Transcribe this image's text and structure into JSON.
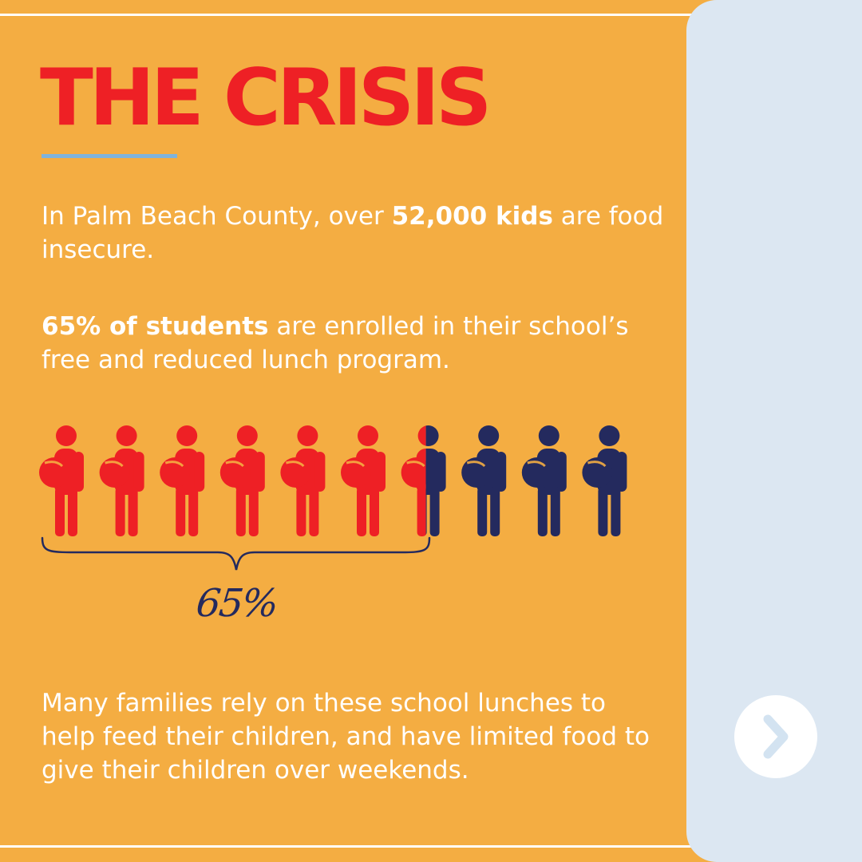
{
  "title": "THE CRISIS",
  "paragraph1": {
    "pre": "In Palm Beach County, over ",
    "bold": "52,000 kids",
    "post": " are food insecure."
  },
  "paragraph2": {
    "bold": "65% of students",
    "post": " are enrolled in their school’s free and reduced lunch program."
  },
  "infographic": {
    "total_figures": 10,
    "highlighted_fraction": 0.65,
    "percent_label": "65%",
    "highlight_color": "#EE2025",
    "base_color": "#242A5E",
    "icon": "student-with-backpack-icon"
  },
  "paragraph3": "Many families rely on these school lunches to help feed their children, and have limited food to give their children over weekends.",
  "colors": {
    "background": "#F4AD42",
    "title": "#EE2025",
    "accent_line": "#7FB3DC",
    "side_panel": "#DCE7F2",
    "text": "#FFFFFF"
  },
  "navigation": {
    "next_icon": "chevron-right-icon"
  }
}
